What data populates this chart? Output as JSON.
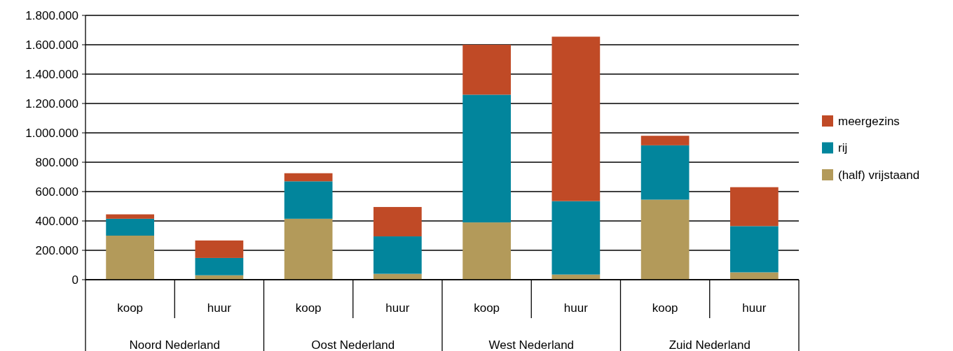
{
  "chart_data": {
    "type": "bar",
    "stacked": true,
    "categories": [
      "koop",
      "huur",
      "koop",
      "huur",
      "koop",
      "huur",
      "koop",
      "huur"
    ],
    "series": [
      {
        "name": "(half) vrijstaand",
        "color": "#b39a5a",
        "values": [
          300000,
          30000,
          415000,
          40000,
          390000,
          35000,
          545000,
          50000
        ]
      },
      {
        "name": "rij",
        "color": "#02859c",
        "values": [
          115000,
          118000,
          255000,
          255000,
          870000,
          500000,
          370000,
          315000
        ]
      },
      {
        "name": "meergezins",
        "color": "#c04a26",
        "values": [
          30000,
          119000,
          55000,
          200000,
          340000,
          1120000,
          65000,
          265000
        ]
      }
    ],
    "ylim": [
      0,
      1800000
    ],
    "yticks": [
      {
        "value": 0,
        "label": "0"
      },
      {
        "value": 200000,
        "label": "200.000"
      },
      {
        "value": 400000,
        "label": "400.000"
      },
      {
        "value": 600000,
        "label": "600.000"
      },
      {
        "value": 800000,
        "label": "800.000"
      },
      {
        "value": 1000000,
        "label": "1.000.000"
      },
      {
        "value": 1200000,
        "label": "1.200.000"
      },
      {
        "value": 1400000,
        "label": "1.400.000"
      },
      {
        "value": 1600000,
        "label": "1.600.000"
      },
      {
        "value": 1800000,
        "label": "1.800.000"
      }
    ],
    "grid": "y",
    "legend": "right",
    "annotations": [
      "Noord Nederland",
      "Oost Nederland",
      "West Nederland",
      "Zuid Nederland"
    ]
  }
}
